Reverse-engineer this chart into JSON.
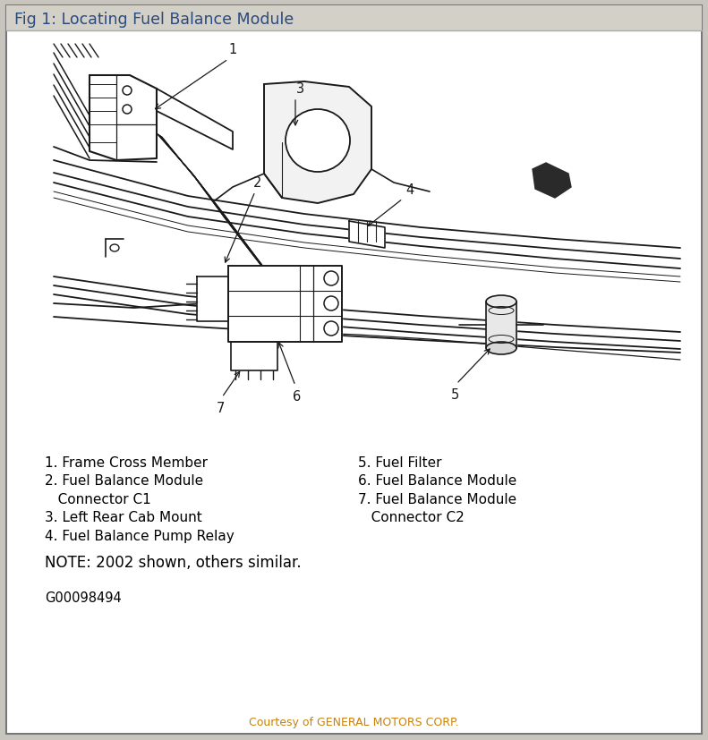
{
  "title": "Fig 1: Locating Fuel Balance Module",
  "title_bg": "#d3d0c8",
  "title_color": "#2a4a7f",
  "outer_bg": "#c8c5be",
  "inner_bg": "#ffffff",
  "border_color": "#999999",
  "legend_left": [
    "1. Frame Cross Member",
    "2. Fuel Balance Module",
    "   Connector C1",
    "3. Left Rear Cab Mount",
    "4. Fuel Balance Pump Relay"
  ],
  "legend_right": [
    "5. Fuel Filter",
    "6. Fuel Balance Module",
    "7. Fuel Balance Module",
    "   Connector C2"
  ],
  "note_line": "NOTE: 2002 shown, others similar.",
  "code_line": "G00098494",
  "courtesy_text": "Courtesy of GENERAL MOTORS CORP.",
  "courtesy_color": "#c8820a",
  "dc": "#1a1a1a",
  "fig_width": 7.91,
  "fig_height": 8.28,
  "dpi": 100
}
